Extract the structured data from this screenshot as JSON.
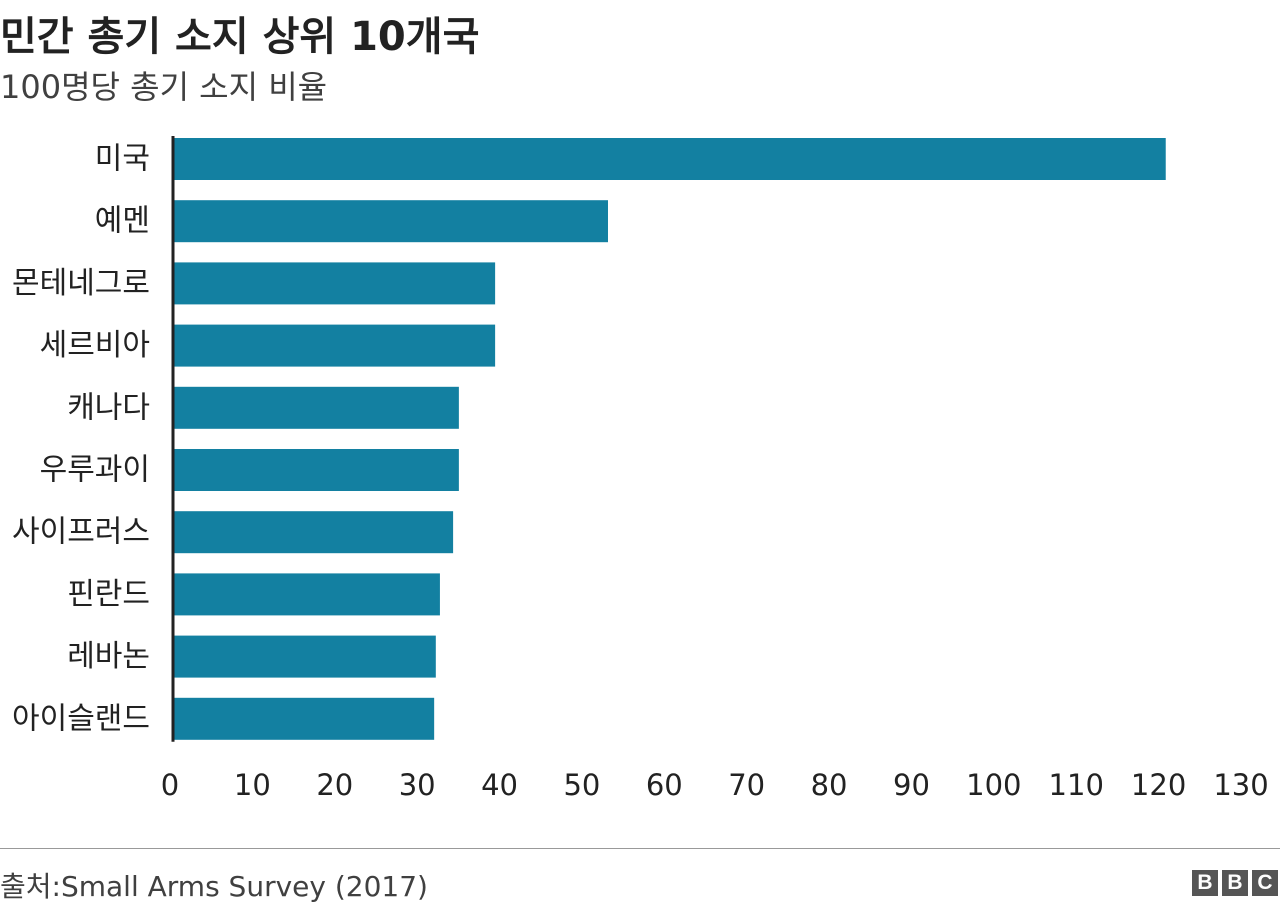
{
  "title": "민간 총기 소지 상위 10개국",
  "subtitle": "100명당 총기 소지 비율",
  "source": "출처:Small Arms Survey (2017)",
  "logo_letters": [
    "B",
    "B",
    "C"
  ],
  "chart_data": {
    "type": "bar",
    "orientation": "horizontal",
    "categories": [
      "미국",
      "예멘",
      "몬테네그로",
      "세르비아",
      "캐나다",
      "우루과이",
      "사이프러스",
      "핀란드",
      "레바논",
      "아이슬랜드"
    ],
    "values": [
      120.5,
      52.8,
      39.1,
      39.1,
      34.7,
      34.7,
      34.0,
      32.4,
      31.9,
      31.7
    ],
    "xlim": [
      0,
      130
    ],
    "xticks": [
      0,
      10,
      20,
      30,
      40,
      50,
      60,
      70,
      80,
      90,
      100,
      110,
      120,
      130
    ],
    "bar_color": "#1380a1",
    "grid": false
  }
}
